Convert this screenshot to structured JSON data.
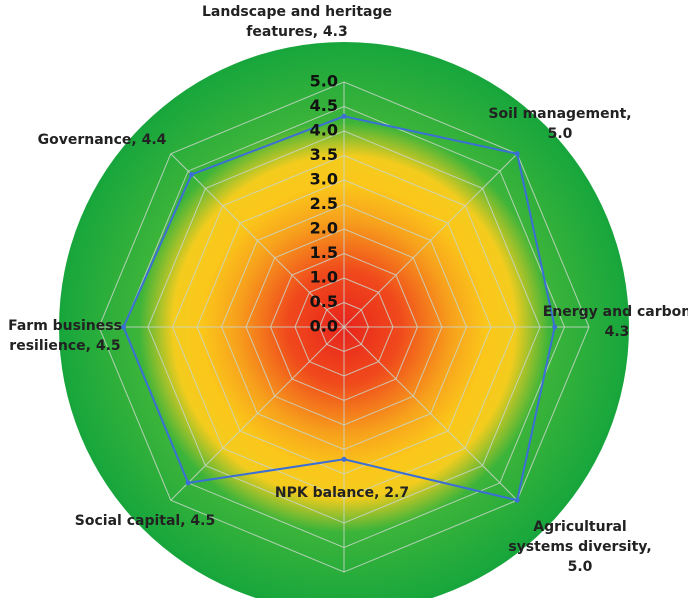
{
  "chart_data": {
    "type": "radar",
    "categories": [
      "Landscape and heritage\nfeatures, 4.3",
      "Soil management,\n5.0",
      "Energy and carbon\n4.3",
      "Agricultural\nsystems diversity,\n5.0",
      "NPK balance, 2.7",
      "Social capital, 4.5",
      "Farm business\nresilience, 4.5",
      "Governance, 4.4"
    ],
    "values": [
      4.3,
      5.0,
      4.3,
      5.0,
      2.7,
      4.5,
      4.5,
      4.4
    ],
    "color": "#3b6fd6",
    "rlim": [
      0,
      5
    ],
    "rticks": [
      {
        "value": 0,
        "label": "0.0"
      },
      0.5,
      {
        "value": 1,
        "label": "1.0"
      },
      1.5,
      {
        "value": 2,
        "label": "2.0"
      },
      2.5,
      {
        "value": 3,
        "label": "3.0"
      },
      3.5,
      {
        "value": 4,
        "label": "4.0"
      },
      4.5,
      {
        "value": 5,
        "label": "5.0"
      }
    ],
    "grid": true
  }
}
